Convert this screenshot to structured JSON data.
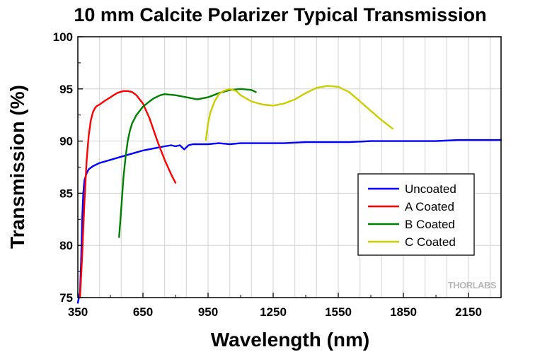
{
  "chart_data": {
    "type": "line",
    "title": "10 mm Calcite Polarizer Typical Transmission",
    "xlabel": "Wavelength (nm)",
    "ylabel": "Transmission (%)",
    "xlim": [
      350,
      2300
    ],
    "ylim": [
      75,
      100
    ],
    "xticks": [
      350,
      650,
      950,
      1250,
      1550,
      1850,
      2150
    ],
    "yticks": [
      75,
      80,
      85,
      90,
      95,
      100
    ],
    "grid": true,
    "legend_position": "lower-right",
    "watermark": "THORLABS",
    "series": [
      {
        "name": "Uncoated",
        "color": "#0000ff",
        "x": [
          350,
          360,
          365,
          370,
          375,
          380,
          390,
          400,
          420,
          450,
          500,
          550,
          600,
          650,
          700,
          750,
          780,
          800,
          820,
          840,
          850,
          860,
          880,
          900,
          950,
          1000,
          1050,
          1100,
          1200,
          1300,
          1400,
          1500,
          1600,
          1700,
          1800,
          1900,
          2000,
          2100,
          2200,
          2300
        ],
        "y": [
          74.5,
          75.5,
          78.5,
          82.5,
          85.0,
          86.2,
          86.9,
          87.3,
          87.6,
          87.9,
          88.2,
          88.5,
          88.8,
          89.1,
          89.3,
          89.5,
          89.6,
          89.5,
          89.6,
          89.2,
          89.4,
          89.6,
          89.7,
          89.7,
          89.7,
          89.8,
          89.7,
          89.8,
          89.8,
          89.8,
          89.9,
          89.9,
          89.9,
          90.0,
          90.0,
          90.0,
          90.0,
          90.1,
          90.1,
          90.1
        ]
      },
      {
        "name": "A Coated",
        "color": "#ff0000",
        "x": [
          360,
          370,
          380,
          390,
          400,
          410,
          420,
          430,
          440,
          450,
          470,
          500,
          530,
          560,
          580,
          600,
          620,
          650,
          680,
          700,
          720,
          750,
          780,
          800
        ],
        "y": [
          75.0,
          79.0,
          84.0,
          88.0,
          90.5,
          92.0,
          92.8,
          93.2,
          93.4,
          93.5,
          93.8,
          94.2,
          94.6,
          94.8,
          94.8,
          94.7,
          94.4,
          93.6,
          92.2,
          91.0,
          89.8,
          88.2,
          86.8,
          86.0
        ]
      },
      {
        "name": "B Coated",
        "color": "#008000",
        "x": [
          540,
          550,
          560,
          570,
          580,
          590,
          600,
          620,
          650,
          680,
          700,
          730,
          750,
          800,
          850,
          900,
          950,
          1000,
          1050,
          1100,
          1150,
          1170
        ],
        "y": [
          80.8,
          83.5,
          86.5,
          88.5,
          90.0,
          91.0,
          91.7,
          92.5,
          93.3,
          93.8,
          94.1,
          94.4,
          94.5,
          94.4,
          94.2,
          94.0,
          94.2,
          94.6,
          94.9,
          95.0,
          94.9,
          94.7
        ]
      },
      {
        "name": "C Coated",
        "color": "#cccc00",
        "x": [
          940,
          950,
          960,
          980,
          1000,
          1020,
          1050,
          1080,
          1100,
          1150,
          1200,
          1250,
          1300,
          1350,
          1400,
          1450,
          1500,
          1550,
          1600,
          1650,
          1700,
          1750,
          1800
        ],
        "y": [
          90.1,
          91.7,
          92.7,
          93.8,
          94.5,
          94.8,
          95.0,
          94.8,
          94.4,
          93.8,
          93.5,
          93.4,
          93.6,
          94.0,
          94.6,
          95.1,
          95.3,
          95.2,
          94.7,
          93.8,
          92.9,
          92.0,
          91.2
        ]
      }
    ]
  }
}
